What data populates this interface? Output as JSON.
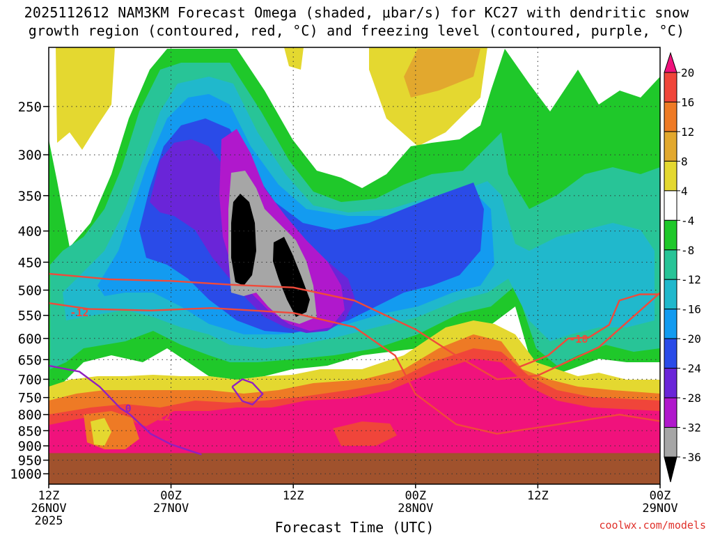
{
  "header": {
    "title_line1": "2025112612 NAM3KM Forecast Omega (shaded, μbar/s) for KC27 with dendritic snow",
    "title_line2": "growth region (contoured, red, °C) and freezing level (contoured, purple, °C)"
  },
  "footer": {
    "credit": "coolwx.com/models"
  },
  "chart_data": {
    "type": "heatmap",
    "xlabel": "Forecast Time (UTC)",
    "ylabel": "",
    "x_ticks": [
      {
        "hour": 0,
        "line1": "12Z",
        "line2": "26NOV",
        "line3": "2025"
      },
      {
        "hour": 12,
        "line1": "00Z",
        "line2": "27NOV",
        "line3": ""
      },
      {
        "hour": 24,
        "line1": "12Z",
        "line2": "",
        "line3": ""
      },
      {
        "hour": 36,
        "line1": "00Z",
        "line2": "28NOV",
        "line3": ""
      },
      {
        "hour": 48,
        "line1": "12Z",
        "line2": "",
        "line3": ""
      },
      {
        "hour": 60,
        "line1": "00Z",
        "line2": "29NOV",
        "line3": ""
      }
    ],
    "xlim_hours": [
      0,
      60
    ],
    "y_scale": "log-pressure",
    "ylim_hPa": [
      1040,
      200
    ],
    "y_ticks": [
      250,
      300,
      350,
      400,
      450,
      500,
      550,
      600,
      650,
      700,
      750,
      800,
      850,
      900,
      950,
      1000
    ],
    "grid": true,
    "ground_level_hPa": 925,
    "colorbar": {
      "labels": [
        "20",
        "16",
        "12",
        "8",
        "4",
        "-4",
        "-8",
        "-12",
        "-16",
        "-20",
        "-24",
        "-28",
        "-32",
        "-36"
      ],
      "colors": [
        "#f0127c",
        "#f0453a",
        "#ee7a25",
        "#e2a82e",
        "#e4d830",
        "#ffffff",
        "#1fc82a",
        "#28c497",
        "#20b8cc",
        "#139bf0",
        "#2a4be8",
        "#6a25d8",
        "#b018cc",
        "#a6a6a6",
        "#000000"
      ],
      "ground_color": "#a0522d"
    },
    "series": [
      {
        "name": "-12",
        "color": "#f04a3a",
        "x_hours": [
          0,
          6,
          12,
          18,
          24,
          30,
          36,
          40,
          44,
          48,
          54,
          60
        ],
        "y_hPa": [
          470,
          480,
          483,
          490,
          495,
          520,
          580,
          640,
          700,
          690,
          620,
          505
        ]
      },
      {
        "name": "-12",
        "color": "#f04a3a",
        "x_hours": [
          0,
          4,
          10,
          16,
          24,
          30,
          34,
          36,
          40,
          44,
          50,
          56,
          60
        ],
        "y_hPa": [
          525,
          537,
          540,
          535,
          545,
          575,
          640,
          740,
          830,
          860,
          830,
          800,
          820
        ]
      },
      {
        "name": "-18",
        "color": "#f04a3a",
        "x_hours": [
          46,
          49,
          51,
          53,
          55,
          56,
          58,
          60
        ],
        "y_hPa": [
          670,
          640,
          600,
          598,
          570,
          520,
          508,
          508
        ]
      },
      {
        "name": "0",
        "color": "#9020c0",
        "x_hours": [
          0,
          3,
          5,
          7,
          8,
          10,
          12,
          15
        ],
        "y_hPa": [
          665,
          680,
          720,
          780,
          800,
          860,
          895,
          930
        ]
      },
      {
        "name": "",
        "color": "#9020c0",
        "x_hours": [
          18,
          19,
          20,
          21,
          20,
          19,
          18
        ],
        "y_hPa": [
          720,
          700,
          710,
          740,
          770,
          760,
          720
        ]
      }
    ],
    "annotations": [
      "-12",
      "-12",
      "-18",
      "0"
    ]
  }
}
